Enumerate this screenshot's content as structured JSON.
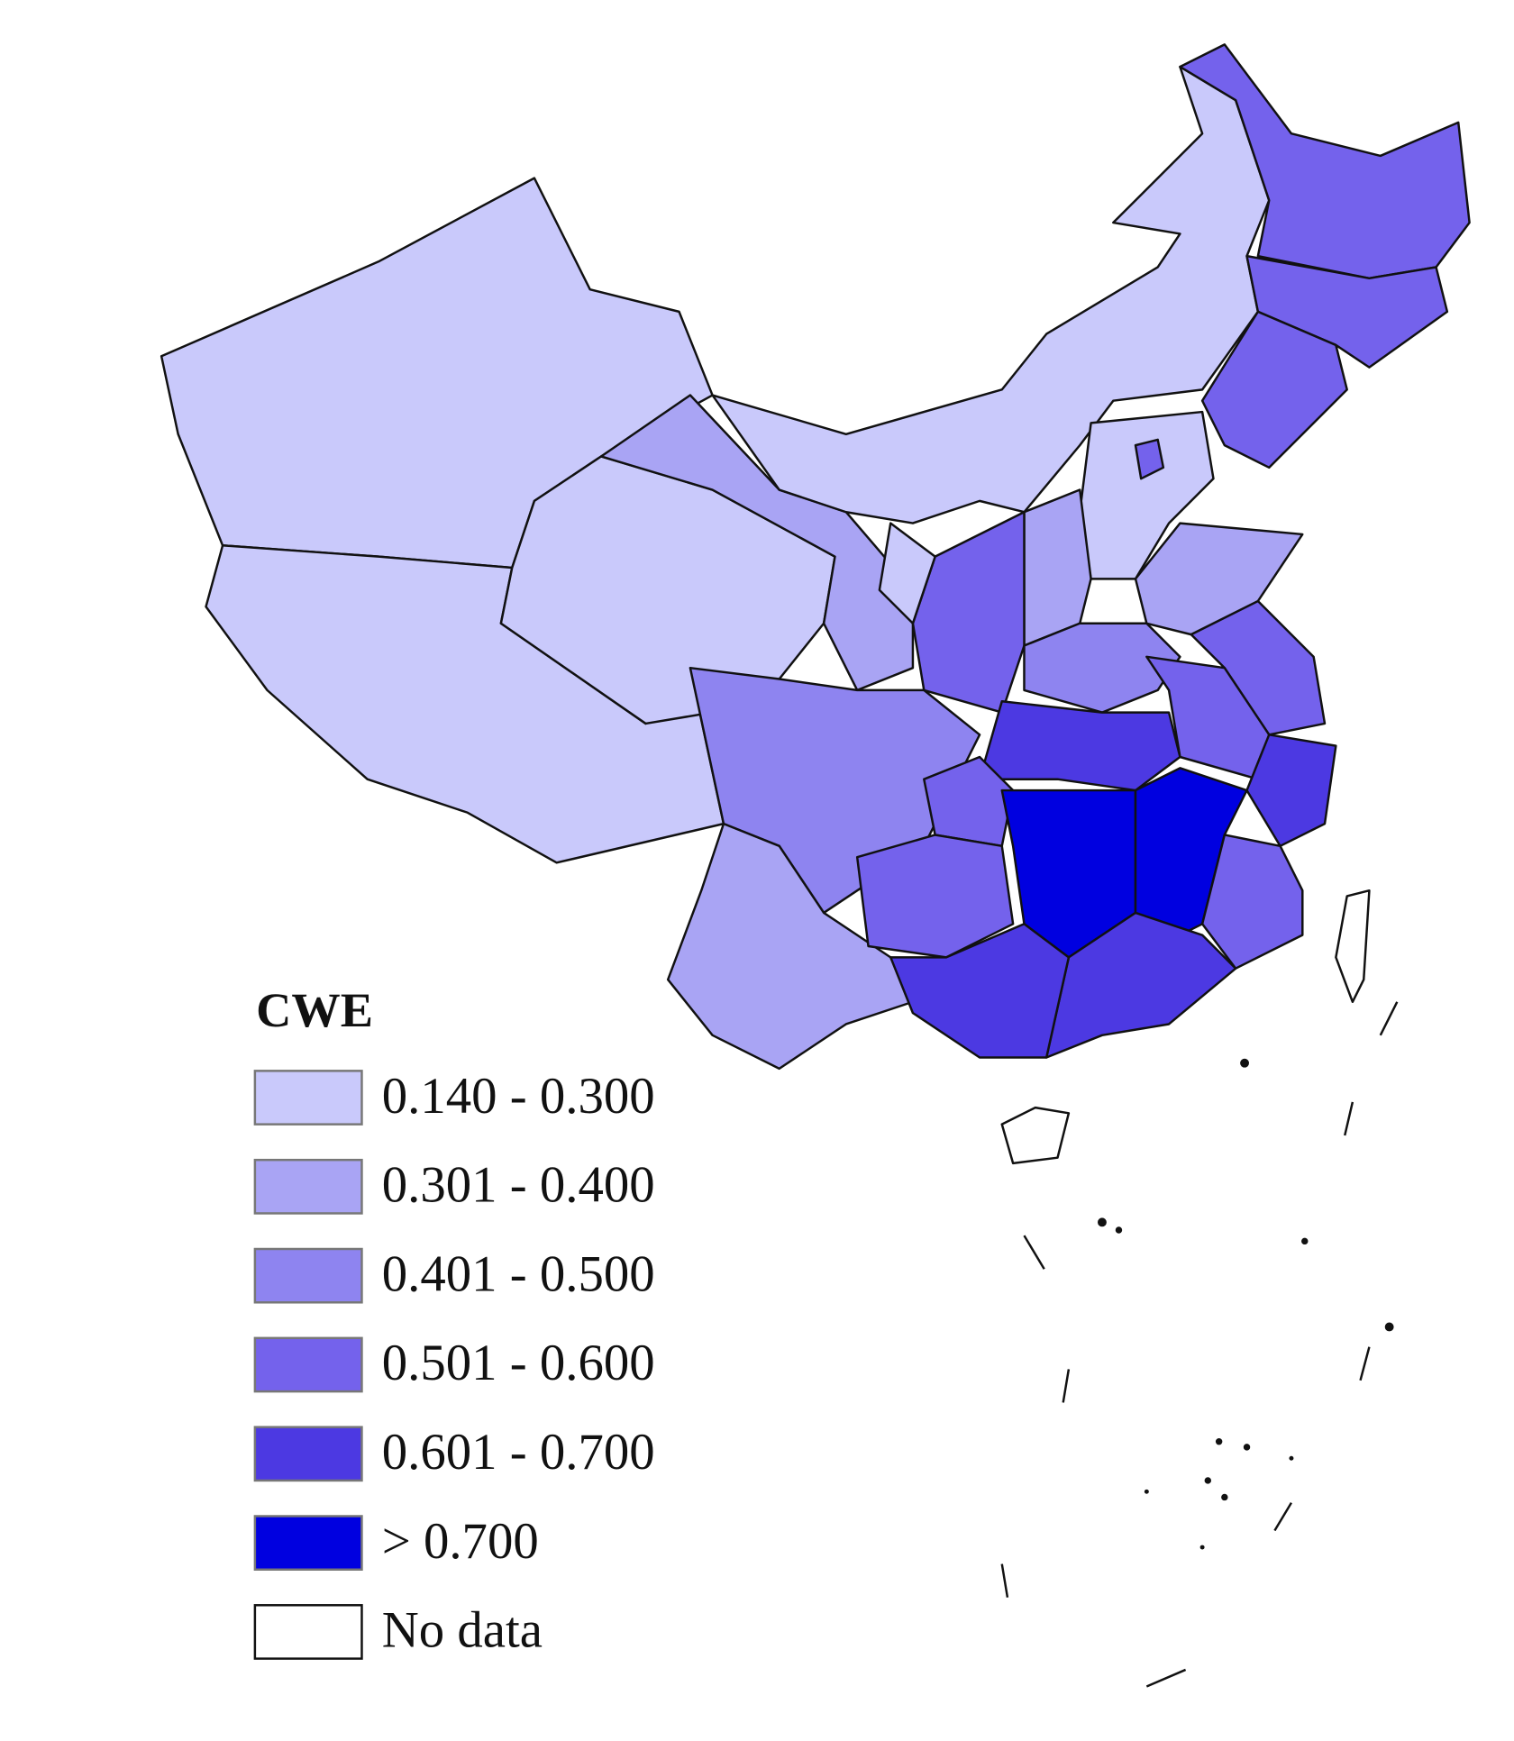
{
  "legend": {
    "title": "CWE",
    "items": [
      {
        "label": "0.140 - 0.300",
        "color": "#c9c9fb"
      },
      {
        "label": "0.301 - 0.400",
        "color": "#a9a4f4"
      },
      {
        "label": "0.401 - 0.500",
        "color": "#8e84f0"
      },
      {
        "label": "0.501 - 0.600",
        "color": "#7462ec"
      },
      {
        "label": "0.601 - 0.700",
        "color": "#4c39e2"
      },
      {
        "label": "> 0.700",
        "color": "#0000e0"
      },
      {
        "label": "No data",
        "color": "#ffffff"
      }
    ]
  }
}
